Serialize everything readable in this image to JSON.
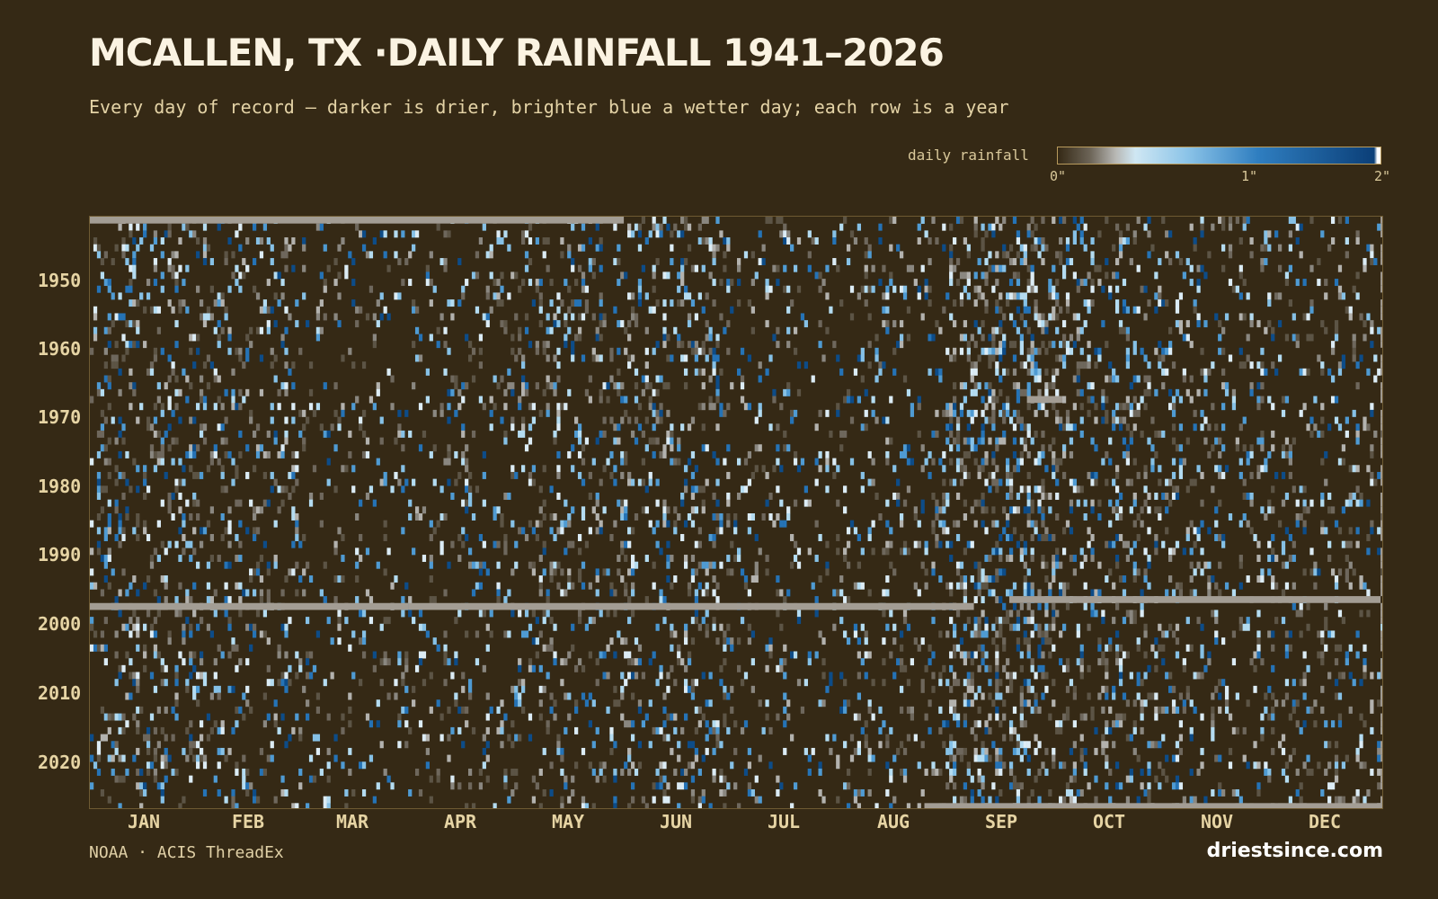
{
  "title": "MCALLEN, TX ·DAILY RAINFALL 1941–2026",
  "subtitle": "Every day of record — darker is drier, brighter blue a wetter day; each row is a year",
  "source": "NOAA · ACIS ThreadEx",
  "brand": "driestsince.com",
  "legend": {
    "label": "daily rainfall",
    "ticks": [
      "0\"",
      "1\"",
      "2\""
    ],
    "stops": [
      "#352915",
      "#6c6457",
      "#b8b8b5",
      "#cfe7f3",
      "#8cc4e8",
      "#2f7ec0",
      "#0b3f78",
      "#ffffff"
    ]
  },
  "colors": {
    "background": "#352915",
    "missing": "#a39d94",
    "text": "#e6d4a4"
  },
  "chart_data": {
    "type": "heatmap",
    "title": "MCALLEN, TX ·DAILY RAINFALL 1941–2026",
    "x_axis": {
      "unit": "day of year",
      "range": [
        1,
        366
      ],
      "tick_labels": [
        "JAN",
        "FEB",
        "MAR",
        "APR",
        "MAY",
        "JUN",
        "JUL",
        "AUG",
        "SEP",
        "OCT",
        "NOV",
        "DEC"
      ]
    },
    "y_axis": {
      "unit": "year",
      "range": [
        1941,
        2026
      ],
      "tick_labels": [
        "1950",
        "1960",
        "1970",
        "1980",
        "1990",
        "2000",
        "2010",
        "2020"
      ]
    },
    "value_range": [
      0,
      2
    ],
    "value_unit": "inches",
    "missing_data": [
      {
        "year": 1941,
        "day_start": 1,
        "day_end": 151
      },
      {
        "year": 1997,
        "day_start": 1,
        "day_end": 90
      },
      {
        "year": 1997,
        "day_start": 91,
        "day_end": 250
      },
      {
        "year": 1996,
        "day_start": 261,
        "day_end": 365
      },
      {
        "year": 1967,
        "day_start": 266,
        "day_end": 275
      },
      {
        "year": 2026,
        "day_start": 237,
        "day_end": 366
      }
    ],
    "seasonal_wet_profile": {
      "jan": 0.22,
      "feb": 0.2,
      "mar": 0.12,
      "apr": 0.13,
      "may": 0.2,
      "jun": 0.22,
      "jul": 0.13,
      "aug": 0.16,
      "sep": 0.34,
      "oct": 0.24,
      "nov": 0.17,
      "dec": 0.17
    }
  }
}
